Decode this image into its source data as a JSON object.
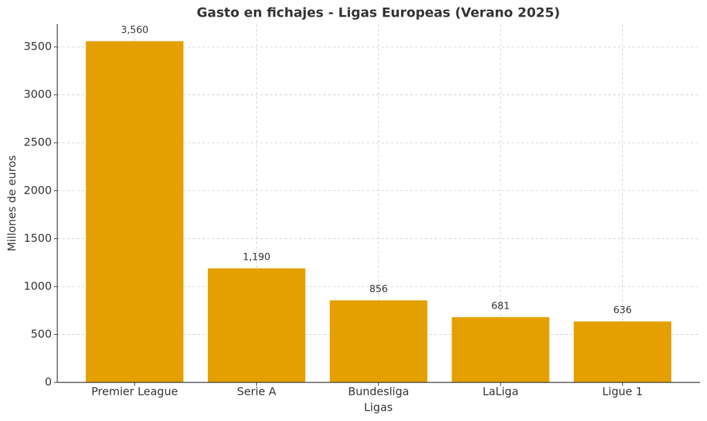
{
  "chart_data": {
    "type": "bar",
    "title": "Gasto en fichajes - Ligas Europeas (Verano 2025)",
    "x_label": "Ligas",
    "y_label": "Millones de euros",
    "categories": [
      "Premier League",
      "Serie A",
      "Bundesliga",
      "LaLiga",
      "Ligue 1"
    ],
    "values": [
      3560,
      1190,
      856,
      681,
      636
    ],
    "value_labels": [
      "3,560",
      "1,190",
      "856",
      "681",
      "636"
    ],
    "color": "#e3a000",
    "ylim": [
      0,
      3738
    ],
    "yticks": [
      0,
      500,
      1000,
      1500,
      2000,
      2500,
      3000,
      3500
    ],
    "grid": true
  }
}
